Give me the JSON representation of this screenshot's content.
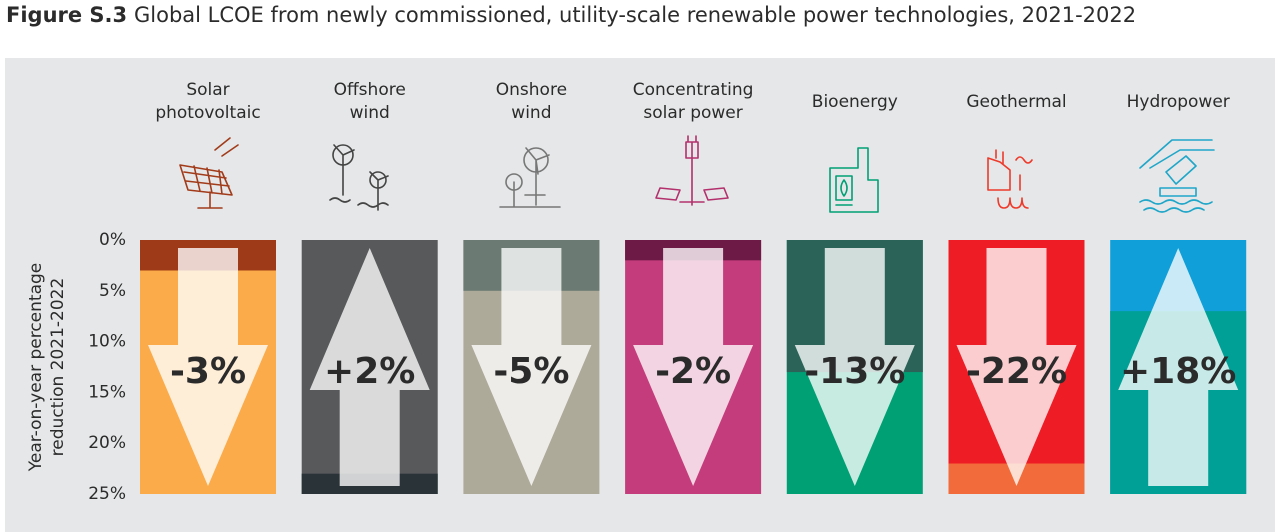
{
  "chart_data": {
    "type": "split-column",
    "title_label": "Figure S.3",
    "title": "Global LCOE from newly commissioned, utility-scale renewable power technologies, 2021-2022",
    "y_label": [
      "Year-on-year percentage",
      "reduction 2021-2022"
    ],
    "ylim": [
      0,
      25
    ],
    "yticks": [
      {
        "value": 0,
        "label": "0%"
      },
      {
        "value": 5,
        "label": "5%"
      },
      {
        "value": 10,
        "label": "10%"
      },
      {
        "value": 15,
        "label": "15%"
      },
      {
        "value": 20,
        "label": "20%"
      },
      {
        "value": 25,
        "label": "25%"
      }
    ],
    "categories": [
      [
        "Solar",
        "photovoltaic"
      ],
      [
        "Offshore",
        "wind"
      ],
      [
        "Onshore",
        "wind"
      ],
      [
        "Concentrating",
        "solar power"
      ],
      [
        "Bioenergy"
      ],
      [
        "Geothermal"
      ],
      [
        "Hydropower"
      ]
    ],
    "values": [
      -3,
      2,
      -5,
      -2,
      -13,
      -22,
      18
    ],
    "value_labels": [
      "-3%",
      "+2%",
      "-5%",
      "-2%",
      "-13%",
      "-22%",
      "+18%"
    ],
    "colors": [
      [
        "#9e3a17",
        "#fbab4a"
      ],
      [
        "#2a3438",
        "#58595b"
      ],
      [
        "#6b7a72",
        "#aeaa9a"
      ],
      [
        "#6d1a46",
        "#c43c7b"
      ],
      [
        "#2b6358",
        "#00a075"
      ],
      [
        "#ee1c25",
        "#f26b3a"
      ],
      [
        "#00a096",
        "#109fd8"
      ]
    ],
    "label_colors": [
      "#c2451e",
      "#58595b",
      "#6b7a72",
      "#6d1a46",
      "#2b6358",
      "#ee1c25",
      "#00a096"
    ]
  }
}
